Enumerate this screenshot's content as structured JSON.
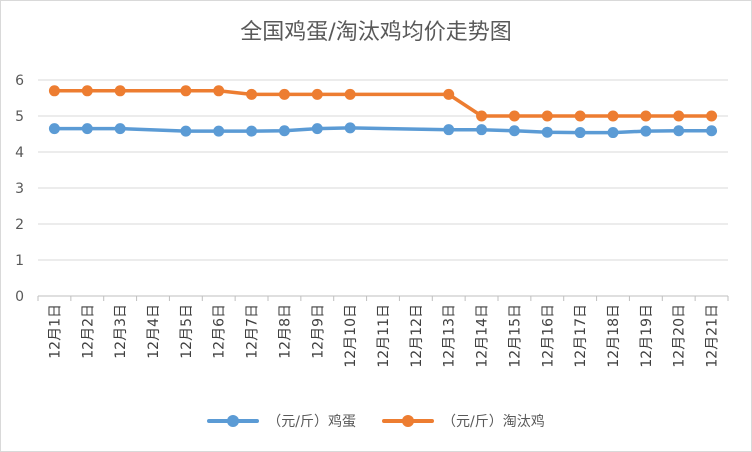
{
  "chart_data": {
    "type": "line",
    "title": "全国鸡蛋/淘汰鸡均价走势图",
    "xlabel": "",
    "ylabel": "",
    "ylim": [
      0,
      6
    ],
    "yticks": [
      0,
      1,
      2,
      3,
      4,
      5,
      6
    ],
    "grid": true,
    "legend_position": "bottom",
    "categories": [
      "12月1日",
      "12月2日",
      "12月3日",
      "12月4日",
      "12月5日",
      "12月6日",
      "12月7日",
      "12月8日",
      "12月9日",
      "12月10日",
      "12月11日",
      "12月12日",
      "12月13日",
      "12月14日",
      "12月15日",
      "12月16日",
      "12月17日",
      "12月18日",
      "12月19日",
      "12月20日",
      "12月21日"
    ],
    "series": [
      {
        "name": "（元/斤）鸡蛋",
        "color": "#5b9bd5",
        "values": [
          4.65,
          4.65,
          4.65,
          null,
          4.58,
          4.58,
          4.58,
          4.59,
          4.65,
          4.67,
          null,
          null,
          4.62,
          4.62,
          4.59,
          4.55,
          4.54,
          4.54,
          4.58,
          4.59,
          4.59
        ]
      },
      {
        "name": "（元/斤）淘汰鸡",
        "color": "#ed7d31",
        "values": [
          5.7,
          5.7,
          5.7,
          null,
          5.7,
          5.7,
          5.6,
          5.6,
          5.6,
          5.6,
          null,
          null,
          5.6,
          5.0,
          5.0,
          5.0,
          5.0,
          5.0,
          5.0,
          5.0,
          5.0
        ]
      }
    ]
  }
}
